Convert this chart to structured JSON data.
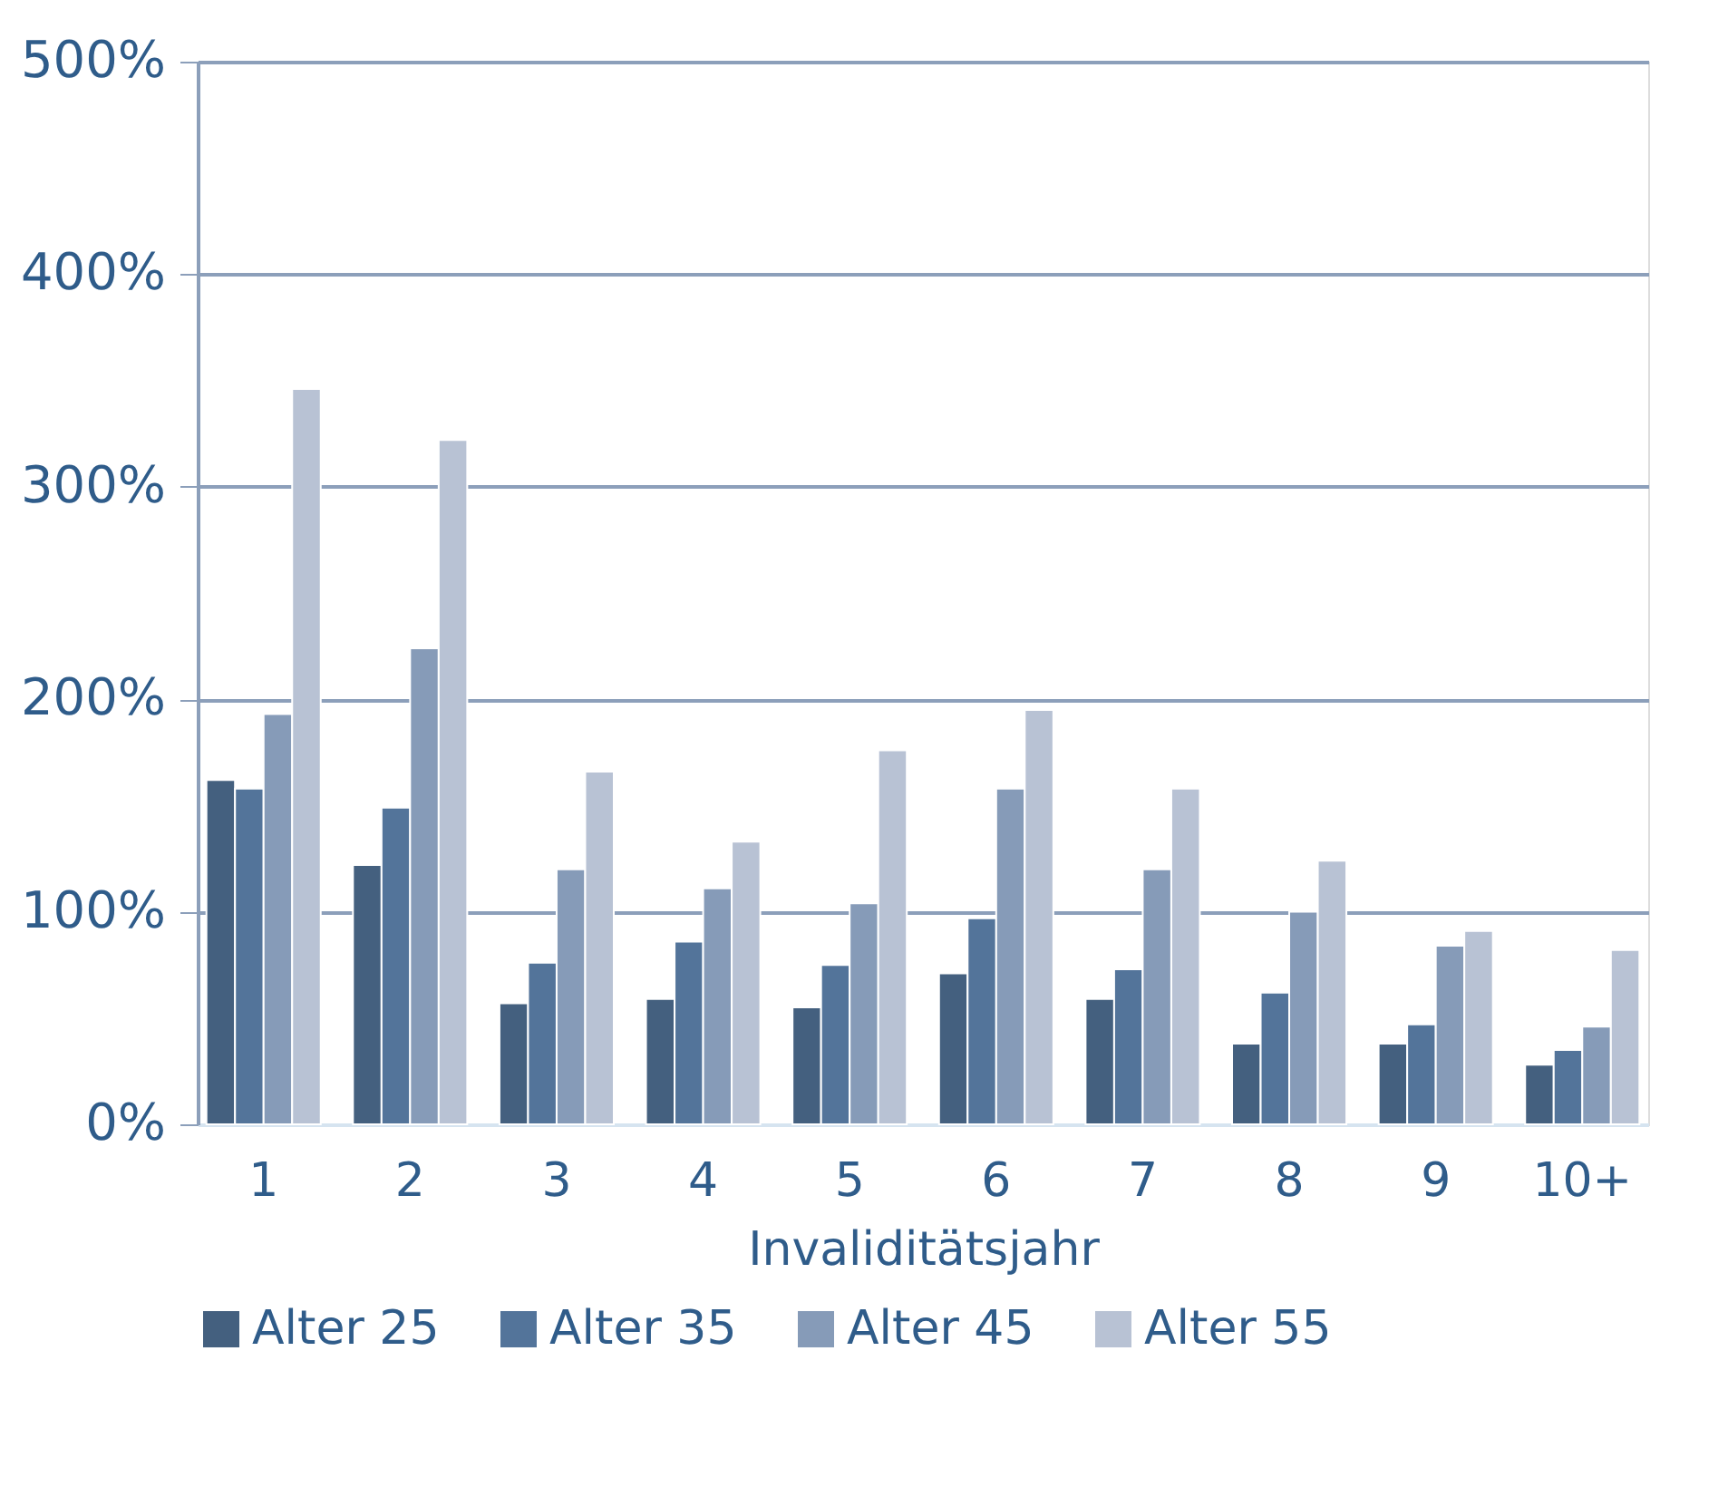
{
  "chart_data": {
    "type": "bar",
    "xlabel": "Invaliditätsjahr",
    "categories": [
      "1",
      "2",
      "3",
      "4",
      "5",
      "6",
      "7",
      "8",
      "9",
      "10+"
    ],
    "series": [
      {
        "name": "Alter 25",
        "color": "#44607f",
        "values": [
          162,
          122,
          57,
          59,
          55,
          71,
          59,
          38,
          38,
          28
        ]
      },
      {
        "name": "Alter 35",
        "color": "#53749a",
        "values": [
          158,
          149,
          76,
          86,
          75,
          97,
          73,
          62,
          47,
          35
        ]
      },
      {
        "name": "Alter 45",
        "color": "#869bb8",
        "values": [
          193,
          224,
          120,
          111,
          104,
          158,
          120,
          100,
          84,
          46
        ]
      },
      {
        "name": "Alter 55",
        "color": "#b8c2d4",
        "values": [
          346,
          322,
          166,
          133,
          176,
          195,
          158,
          124,
          91,
          82
        ]
      }
    ],
    "ylim": [
      0,
      500
    ],
    "yticks": [
      {
        "value": 0,
        "label": "0%"
      },
      {
        "value": 100,
        "label": "100%"
      },
      {
        "value": 200,
        "label": "200%"
      },
      {
        "value": 300,
        "label": "300%"
      },
      {
        "value": 400,
        "label": "400%"
      },
      {
        "value": 500,
        "label": "500%"
      }
    ],
    "grid": "y",
    "legend": "bottom"
  }
}
